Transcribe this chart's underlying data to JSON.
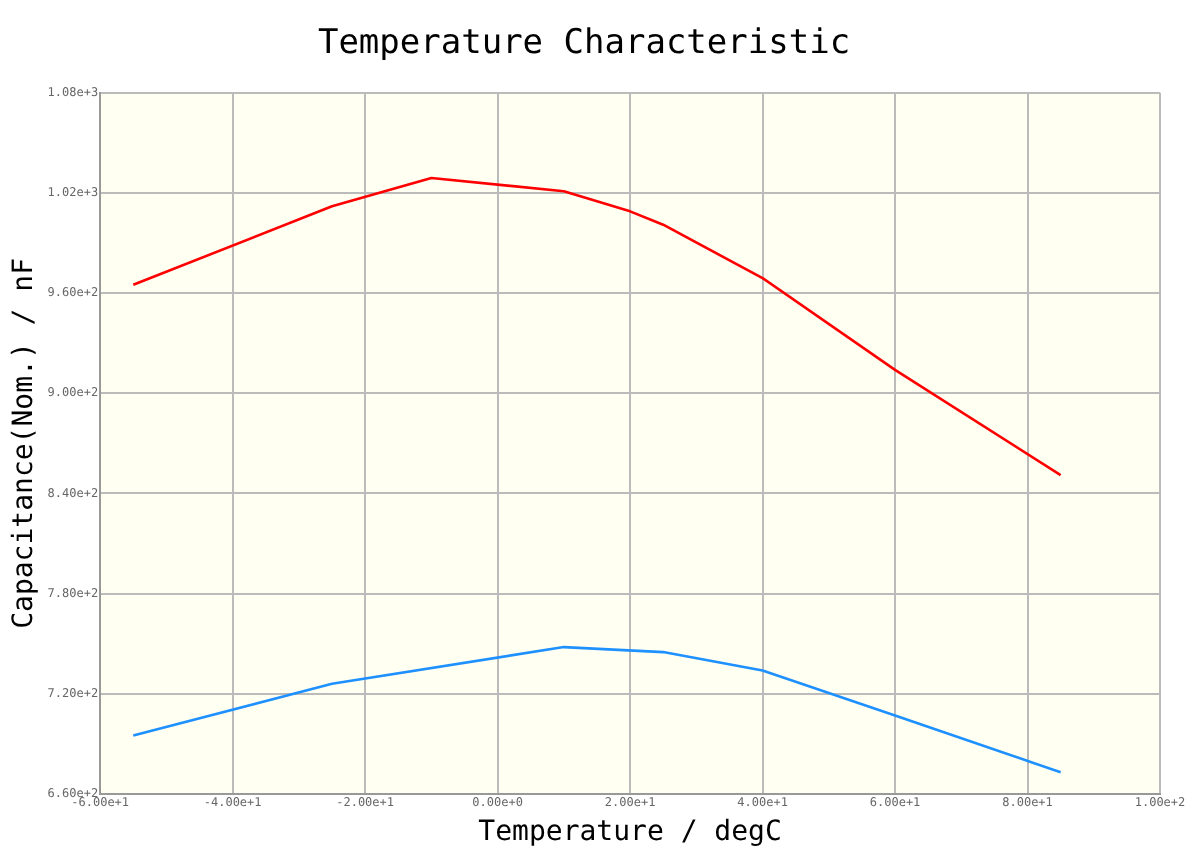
{
  "chart_data": {
    "type": "line",
    "title": "Temperature Characteristic",
    "xlabel": "Temperature / degC",
    "ylabel": "Capacitance(Nom.) / nF",
    "xlim": [
      -60,
      100
    ],
    "ylim": [
      660,
      1080
    ],
    "xticks": [
      {
        "value": -60,
        "label": "-6.00e+1"
      },
      {
        "value": -40,
        "label": "-4.00e+1"
      },
      {
        "value": -20,
        "label": "-2.00e+1"
      },
      {
        "value": 0,
        "label": "0.00e+0"
      },
      {
        "value": 20,
        "label": "2.00e+1"
      },
      {
        "value": 40,
        "label": "4.00e+1"
      },
      {
        "value": 60,
        "label": "6.00e+1"
      },
      {
        "value": 80,
        "label": "8.00e+1"
      },
      {
        "value": 100,
        "label": "1.00e+2"
      }
    ],
    "yticks": [
      {
        "value": 660,
        "label": "6.60e+2"
      },
      {
        "value": 720,
        "label": "7.20e+2"
      },
      {
        "value": 780,
        "label": "7.80e+2"
      },
      {
        "value": 840,
        "label": "8.40e+2"
      },
      {
        "value": 900,
        "label": "9.00e+2"
      },
      {
        "value": 960,
        "label": "9.60e+2"
      },
      {
        "value": 1020,
        "label": "1.02e+3"
      },
      {
        "value": 1080,
        "label": "1.08e+3"
      }
    ],
    "grid": true,
    "marker": "none",
    "line_style": "solid",
    "series": [
      {
        "color": "#ff0000",
        "x": [
          -55,
          -25,
          -10,
          10,
          20,
          25,
          40,
          60,
          85
        ],
        "values": [
          965,
          1012,
          1029,
          1021,
          1009,
          1001,
          969,
          914,
          851
        ]
      },
      {
        "color": "#1e90ff",
        "x": [
          -55,
          -25,
          10,
          25,
          40,
          60,
          85
        ],
        "values": [
          695,
          726,
          748,
          745,
          734,
          707,
          673
        ]
      }
    ]
  }
}
